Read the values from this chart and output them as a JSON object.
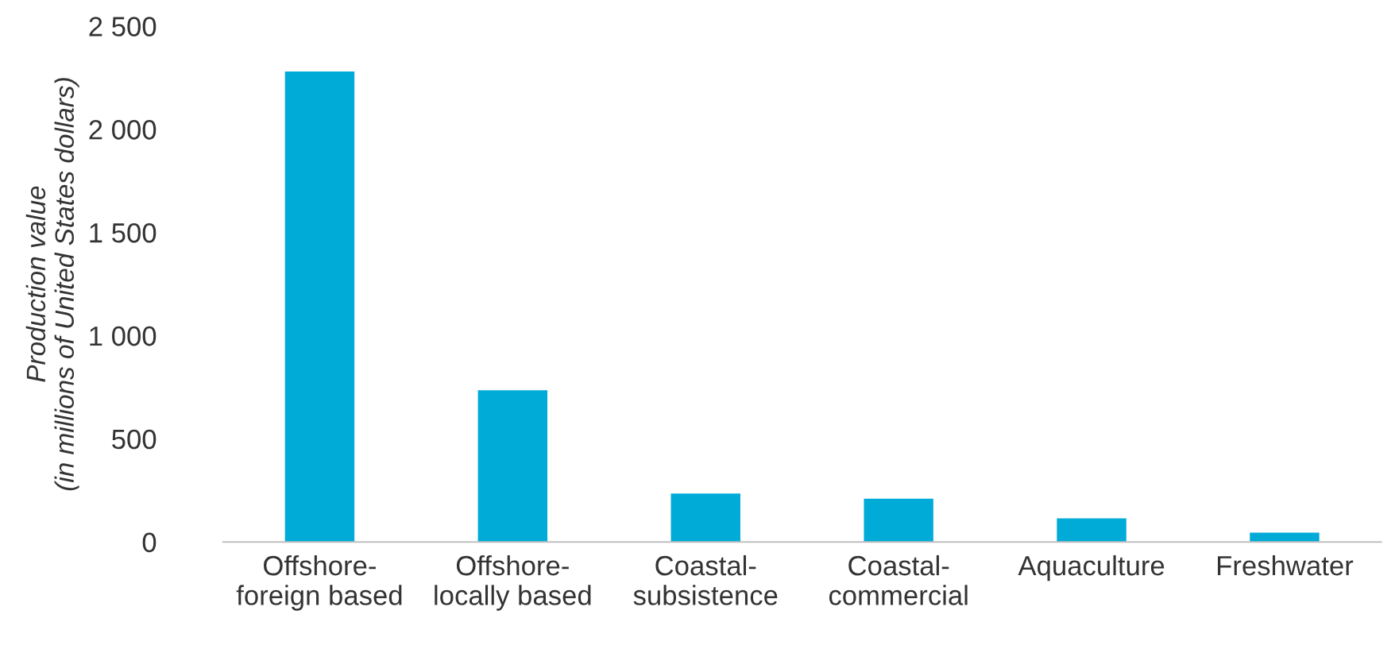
{
  "chart_data": {
    "type": "bar",
    "ylabel": "Production value\n(in millions of United States dollars)",
    "categories": [
      "Offshore-\nforeign based",
      "Offshore-\nlocally based",
      "Coastal-\nsubsistence",
      "Coastal-\ncommercial",
      "Aquaculture",
      "Freshwater"
    ],
    "values": [
      2280,
      735,
      235,
      210,
      115,
      45
    ],
    "color": "#00acd7",
    "ylim": [
      0,
      2500
    ],
    "yticks": [
      0,
      500,
      {
        "value": 1000,
        "label": "1 000"
      },
      {
        "value": 1500,
        "label": "1 500"
      },
      {
        "value": 2000,
        "label": "2 000"
      },
      {
        "value": 2500,
        "label": "2 500"
      }
    ],
    "grid": false,
    "legend": false
  }
}
